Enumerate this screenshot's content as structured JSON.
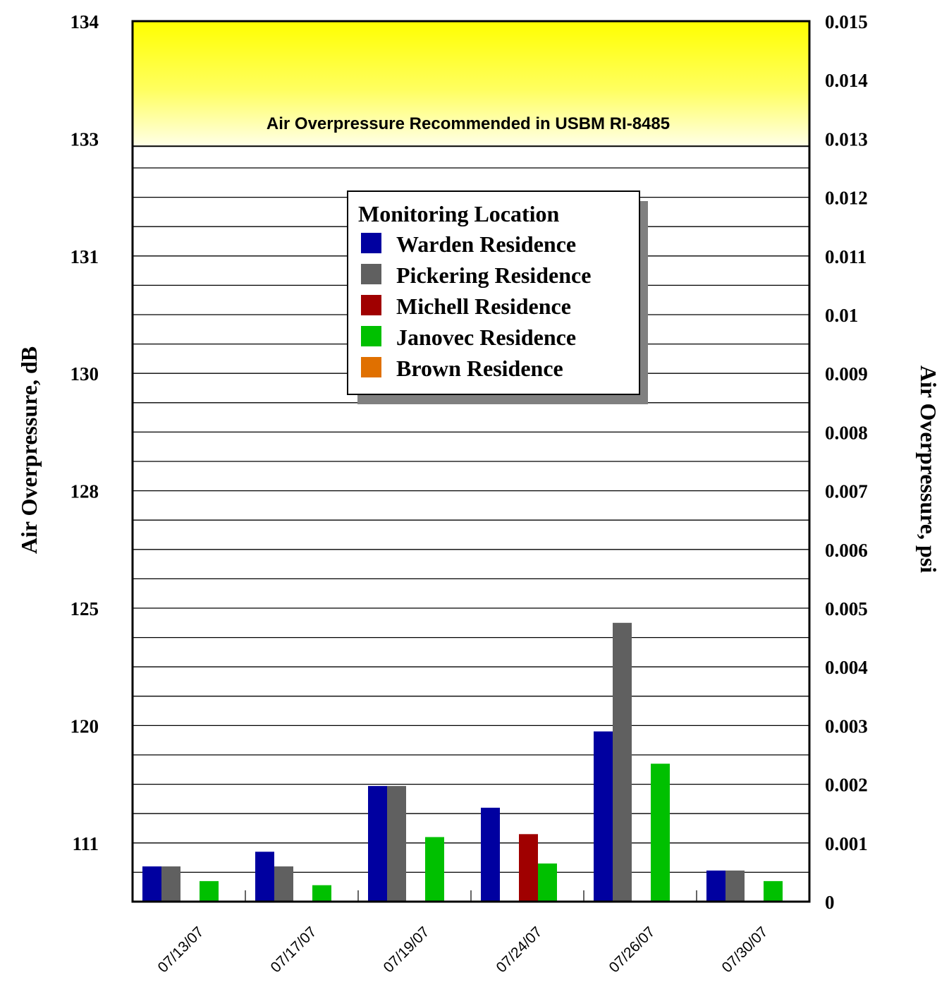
{
  "chart_data": {
    "type": "bar",
    "categories": [
      "07/13/07",
      "07/17/07",
      "07/19/07",
      "07/24/07",
      "07/26/07",
      "07/30/07"
    ],
    "series": [
      {
        "name": "Warden Residence",
        "color": "#0000a0",
        "values": [
          0.0006,
          0.00085,
          0.00197,
          0.0016,
          0.0029,
          0.00053
        ]
      },
      {
        "name": "Pickering Residence",
        "color": "#606060",
        "values": [
          0.0006,
          0.0006,
          0.00197,
          null,
          0.00475,
          0.00053
        ]
      },
      {
        "name": "Michell Residence",
        "color": "#a00000",
        "values": [
          null,
          null,
          null,
          0.00115,
          null,
          null
        ]
      },
      {
        "name": "Janovec Residence",
        "color": "#00c000",
        "values": [
          0.00035,
          0.00028,
          0.0011,
          0.00065,
          0.00235,
          0.00035
        ]
      },
      {
        "name": "Brown Residence",
        "color": "#e07000",
        "values": [
          null,
          null,
          null,
          null,
          null,
          null
        ]
      }
    ],
    "ylim_right": [
      0,
      0.015
    ],
    "right_ticks": [
      "0",
      "0.001",
      "0.002",
      "0.003",
      "0.004",
      "0.005",
      "0.006",
      "0.007",
      "0.008",
      "0.009",
      "0.01",
      "0.011",
      "0.012",
      "0.013",
      "0.014",
      "0.015"
    ],
    "left_ticks": [
      {
        "label": "111",
        "psi": 0.001
      },
      {
        "label": "120",
        "psi": 0.003
      },
      {
        "label": "125",
        "psi": 0.005
      },
      {
        "label": "128",
        "psi": 0.007
      },
      {
        "label": "130",
        "psi": 0.009
      },
      {
        "label": "131",
        "psi": 0.011
      },
      {
        "label": "133",
        "psi": 0.013
      },
      {
        "label": "134",
        "psi": 0.015
      }
    ],
    "ylabel_left": "Air Overpressure, dB",
    "ylabel_right": "Air Overpressure, psi",
    "legend_title": "Monitoring Location",
    "threshold_label": "Air Overpressure Recommended in USBM RI-8485",
    "threshold_psi": 0.01287,
    "threshold_color": "#ffff00",
    "gridlines": true,
    "grid_step": 0.0005,
    "legend_placement": "upper-center"
  }
}
